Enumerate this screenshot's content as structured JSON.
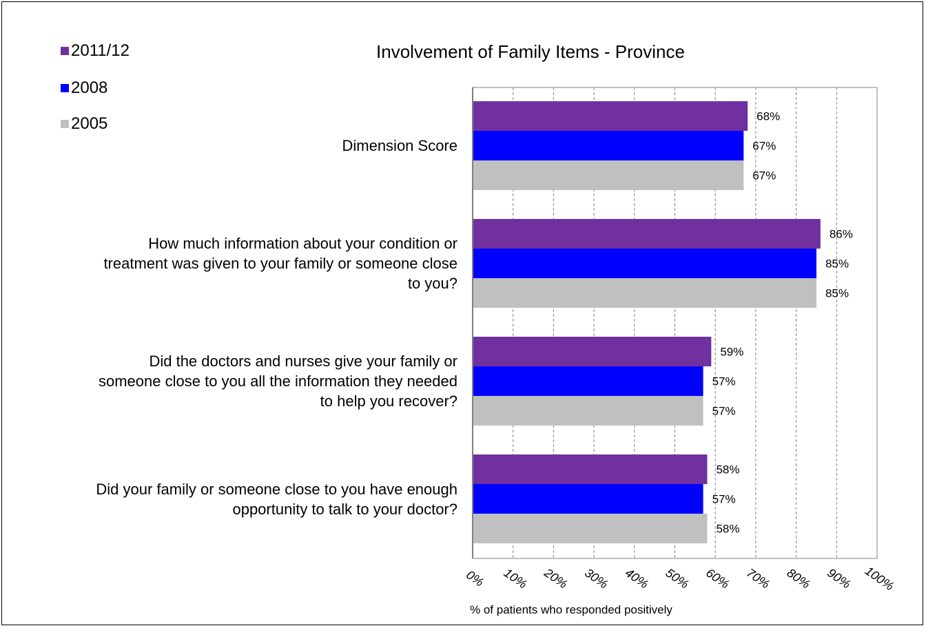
{
  "chart_data": {
    "type": "bar",
    "orientation": "horizontal",
    "title": "Involvement of Family Items - Province",
    "xlabel": "% of patients who responded positively",
    "xlim": [
      0,
      100
    ],
    "x_ticks": [
      "0%",
      "10%",
      "20%",
      "30%",
      "40%",
      "50%",
      "60%",
      "70%",
      "80%",
      "90%",
      "100%"
    ],
    "grid": "vertical dashed",
    "legend_position": "top-left",
    "categories": [
      "Dimension Score",
      "How much information about your condition or treatment was given to your family or someone close to you?",
      "Did the doctors and nurses give your family or someone close to you all the information they needed to help you recover?",
      "Did your family or someone close to you have enough opportunity to talk to your doctor?"
    ],
    "category_lines": [
      [
        "Dimension Score"
      ],
      [
        "How much information about your condition or",
        "treatment was given to your family or someone close",
        "to you?"
      ],
      [
        "Did the doctors and nurses give your family or",
        "someone close to you all the information they needed",
        "to help you recover?"
      ],
      [
        "Did your family or someone close to you have enough",
        "opportunity to talk to your doctor?"
      ]
    ],
    "series": [
      {
        "name": "2011/12",
        "color": "#7030a0",
        "values": [
          68,
          86,
          59,
          58
        ],
        "labels": [
          "68%",
          "86%",
          "59%",
          "58%"
        ]
      },
      {
        "name": "2008",
        "color": "#0000ff",
        "values": [
          67,
          85,
          57,
          57
        ],
        "labels": [
          "67%",
          "85%",
          "57%",
          "57%"
        ]
      },
      {
        "name": "2005",
        "color": "#c0c0c0",
        "values": [
          67,
          85,
          57,
          58
        ],
        "labels": [
          "67%",
          "85%",
          "57%",
          "58%"
        ]
      }
    ]
  }
}
